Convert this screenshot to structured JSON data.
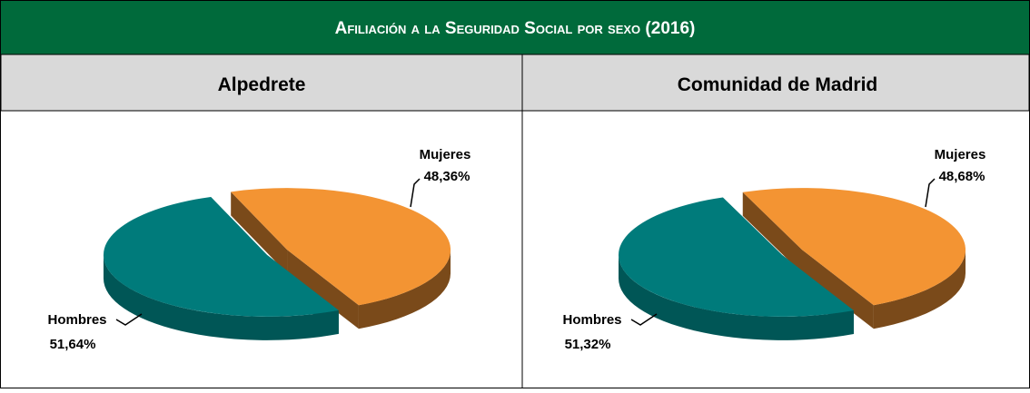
{
  "header": {
    "title": "Afiliación a la Seguridad Social por sexo (2016)"
  },
  "chart_data": [
    {
      "type": "pie",
      "title": "Alpedrete",
      "categories": [
        "Hombres",
        "Mujeres"
      ],
      "values": [
        51.64,
        48.36
      ],
      "value_labels": [
        "51,64%",
        "48,36%"
      ],
      "colors": [
        "#007b7b",
        "#f39433"
      ]
    },
    {
      "type": "pie",
      "title": "Comunidad de Madrid",
      "categories": [
        "Hombres",
        "Mujeres"
      ],
      "values": [
        51.32,
        48.68
      ],
      "value_labels": [
        "51,32%",
        "48,68%"
      ],
      "colors": [
        "#007b7b",
        "#f39433"
      ]
    }
  ]
}
